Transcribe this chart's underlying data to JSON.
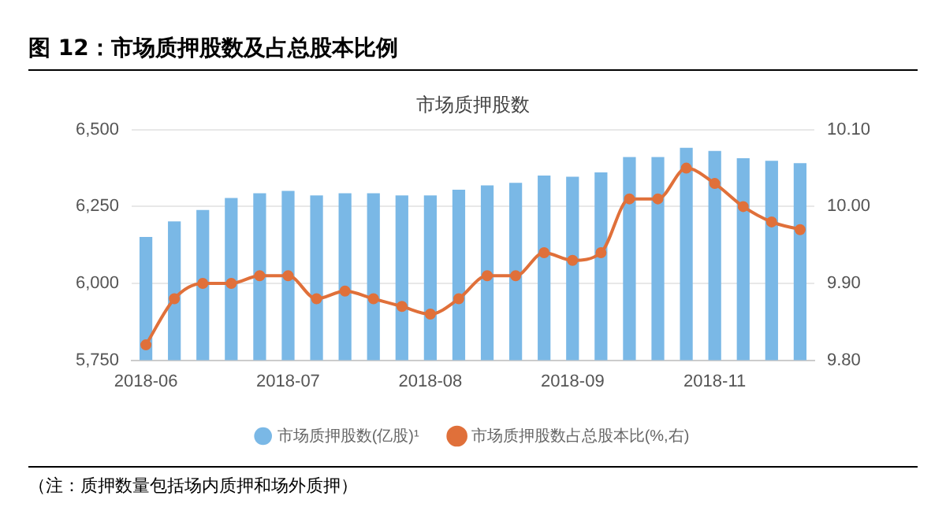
{
  "chart_data": {
    "type": "bar",
    "title": "图 12：市场质押股数及占总股本比例",
    "subtitle": "市场质押股数",
    "categories": [
      "2018-06",
      null,
      null,
      null,
      null,
      "2018-07",
      null,
      null,
      null,
      null,
      "2018-08",
      null,
      null,
      null,
      null,
      "2018-09",
      null,
      null,
      null,
      null,
      "2018-11",
      null,
      null,
      null
    ],
    "series": [
      {
        "name": "市场质押股数(亿股)¹",
        "color": "#7ab8e6",
        "values": [
          6151,
          6202,
          6239,
          6278,
          6293,
          6301,
          6286,
          6293,
          6293,
          6286,
          6286,
          6305,
          6319,
          6327,
          6351,
          6347,
          6361,
          6411,
          6411,
          6441,
          6431,
          6407,
          6399,
          6391
        ]
      },
      {
        "name": "市场质押股数占总股本比(%,右)",
        "type": "line",
        "axis": "y2",
        "color": "#e0703a",
        "values": [
          9.82,
          9.88,
          9.9,
          9.9,
          9.91,
          9.91,
          9.88,
          9.89,
          9.88,
          9.87,
          9.86,
          9.88,
          9.91,
          9.91,
          9.94,
          9.93,
          9.94,
          10.01,
          10.01,
          10.05,
          10.03,
          10.0,
          9.98,
          9.97
        ]
      }
    ],
    "ylim": [
      5750,
      6500
    ],
    "yticks": [
      {
        "value": 5750,
        "label": "5,750"
      },
      {
        "value": 6000,
        "label": "6,000"
      },
      {
        "value": 6250,
        "label": "6,250"
      },
      {
        "value": 6500,
        "label": "6,500"
      }
    ],
    "y2lim": [
      9.8,
      10.1
    ],
    "y2ticks": [
      {
        "value": 9.8,
        "label": "9.80"
      },
      {
        "value": 9.9,
        "label": "9.90"
      },
      {
        "value": 10.0,
        "label": "10.00"
      },
      {
        "value": 10.1,
        "label": "10.10"
      }
    ],
    "grid": "y",
    "legend": "bottom",
    "marker": "circle",
    "line_style": "solid",
    "annotations": [
      "（注：质押数量包括场内质押和场外质押）"
    ]
  }
}
